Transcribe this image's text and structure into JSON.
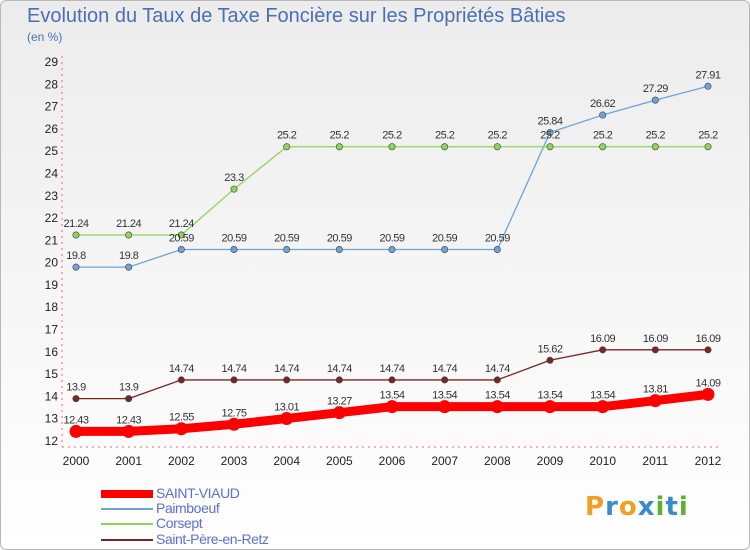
{
  "chart_data": {
    "type": "line",
    "title": "Evolution du Taux de Taxe Foncière sur les Propriétés Bâties",
    "ylabel": "(en %)",
    "x": [
      "2000",
      "2001",
      "2002",
      "2003",
      "2004",
      "2005",
      "2006",
      "2007",
      "2008",
      "2009",
      "2010",
      "2011",
      "2012"
    ],
    "ylim": [
      12,
      29
    ],
    "yticks": [
      "12",
      "13",
      "14",
      "15",
      "16",
      "17",
      "18",
      "19",
      "20",
      "21",
      "22",
      "23",
      "24",
      "25",
      "26",
      "27",
      "28",
      "29"
    ],
    "grid": false,
    "legend_position": "bottom-left",
    "series": [
      {
        "name": "SAINT-VIAUD",
        "color": "#ff0000",
        "values": [
          12.43,
          12.43,
          12.55,
          12.75,
          13.01,
          13.27,
          13.54,
          13.54,
          13.54,
          13.54,
          13.54,
          13.81,
          14.09
        ],
        "labels": [
          "12.43",
          "12.43",
          "12.55",
          "12.75",
          "13.01",
          "13.27",
          "13.54",
          "13.54",
          "13.54",
          "13.54",
          "13.54",
          "13.81",
          "14.09"
        ]
      },
      {
        "name": "Paimboeuf",
        "color": "#6fa3d8",
        "values": [
          19.8,
          19.8,
          20.59,
          20.59,
          20.59,
          20.59,
          20.59,
          20.59,
          20.59,
          25.84,
          26.62,
          27.29,
          27.91
        ],
        "labels": [
          "19.8",
          "19.8",
          "20.59",
          "20.59",
          "20.59",
          "20.59",
          "20.59",
          "20.59",
          "20.59",
          "25.84",
          "26.62",
          "27.29",
          "27.91"
        ]
      },
      {
        "name": "Corsept",
        "color": "#8fd45a",
        "values": [
          21.24,
          21.24,
          21.24,
          23.3,
          25.2,
          25.2,
          25.2,
          25.2,
          25.2,
          25.2,
          25.2,
          25.2,
          25.2
        ],
        "labels": [
          "21.24",
          "21.24",
          "21.24",
          "23.3",
          "25.2",
          "25.2",
          "25.2",
          "25.2",
          "25.2",
          "25.2",
          "25.2",
          "25.2",
          "25.2"
        ]
      },
      {
        "name": "Saint-Père-en-Retz",
        "color": "#7a2424",
        "values": [
          13.9,
          13.9,
          14.74,
          14.74,
          14.74,
          14.74,
          14.74,
          14.74,
          14.74,
          15.62,
          16.09,
          16.09,
          16.09
        ],
        "labels": [
          "13.9",
          "13.9",
          "14.74",
          "14.74",
          "14.74",
          "14.74",
          "14.74",
          "14.74",
          "14.74",
          "15.62",
          "16.09",
          "16.09",
          "16.09"
        ]
      }
    ]
  },
  "brand": {
    "letters": [
      "P",
      "r",
      "o",
      "x",
      "i",
      "t",
      "i"
    ],
    "colors": [
      "#f0a020",
      "#3a8ad0",
      "#f0a020",
      "#3a8ad0",
      "#60b030",
      "#3a8ad0",
      "#60b030"
    ]
  }
}
